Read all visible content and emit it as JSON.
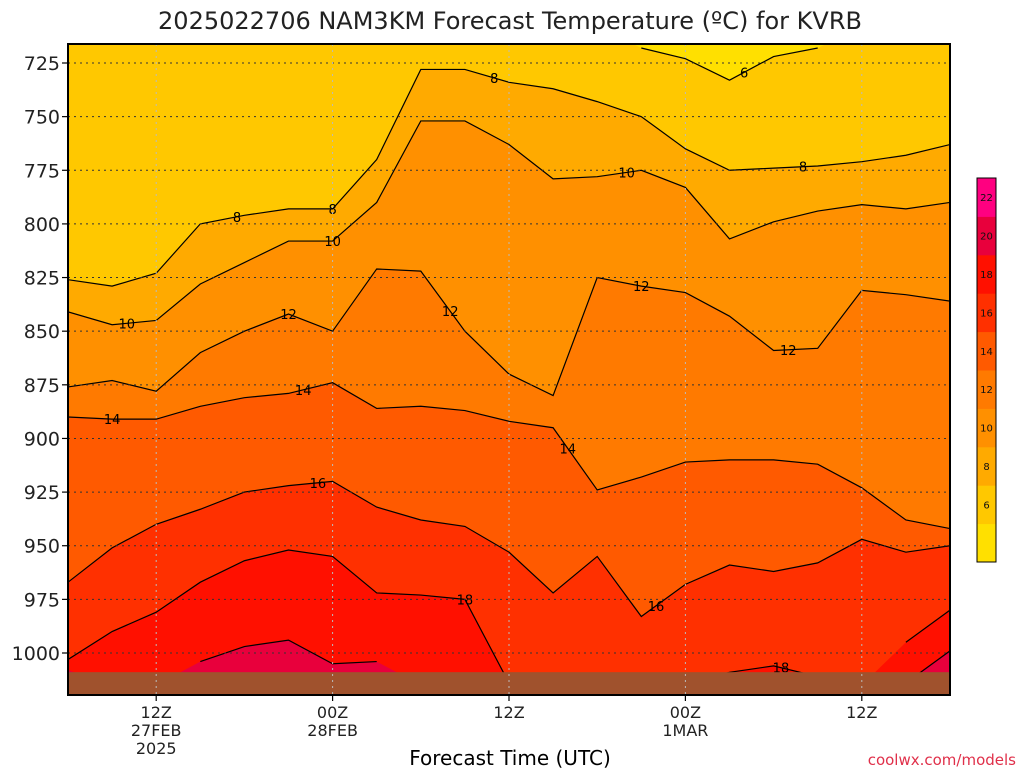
{
  "chart_data": {
    "type": "heatmap",
    "title": "2025022706 NAM3KM Forecast Temperature (ºC) for KVRB",
    "xlabel": "Forecast Time (UTC)",
    "ylabel": "",
    "credit": "coolwx.com/models",
    "y_scale": "pressure (hPa), decreasing upward",
    "ylim": [
      1015,
      718
    ],
    "xlim_hours_from_init": [
      0,
      60
    ],
    "y_ticks": [
      725,
      750,
      775,
      800,
      825,
      850,
      875,
      900,
      925,
      950,
      975,
      1000
    ],
    "x_ticks": [
      {
        "hour": 6,
        "labels": [
          "12Z",
          "27FEB",
          "2025"
        ]
      },
      {
        "hour": 18,
        "labels": [
          "00Z",
          "28FEB"
        ]
      },
      {
        "hour": 30,
        "labels": [
          "12Z"
        ]
      },
      {
        "hour": 42,
        "labels": [
          "00Z",
          "1MAR"
        ]
      },
      {
        "hour": 54,
        "labels": [
          "12Z"
        ]
      }
    ],
    "grid": true,
    "surface_color": "#a0522d",
    "colorbar": {
      "placement": "right",
      "levels": [
        4,
        6,
        8,
        10,
        12,
        14,
        16,
        18,
        20,
        22,
        24
      ],
      "labels": [
        "6",
        "8",
        "10",
        "12",
        "14",
        "16",
        "18",
        "20",
        "22"
      ],
      "colors": [
        "#ffe000",
        "#ffc800",
        "#ffaa00",
        "#ff9000",
        "#ff7a00",
        "#ff5a00",
        "#ff3000",
        "#ff1000",
        "#e8003c",
        "#ff0080"
      ]
    },
    "contours": [
      {
        "value": 6,
        "label": "6",
        "label_hours": [
          46
        ]
      },
      {
        "value": 8,
        "label": "8",
        "label_hours": [
          11.5,
          18,
          29,
          50
        ]
      },
      {
        "value": 10,
        "label": "10",
        "label_hours": [
          4,
          18,
          38
        ]
      },
      {
        "value": 12,
        "label": "12",
        "label_hours": [
          15,
          26,
          39,
          49
        ]
      },
      {
        "value": 14,
        "label": "14",
        "label_hours": [
          3,
          16,
          34
        ]
      },
      {
        "value": 16,
        "label": "16",
        "label_hours": [
          17,
          40
        ]
      },
      {
        "value": 18,
        "label": "18",
        "label_hours": [
          27,
          48.5
        ]
      }
    ],
    "x_hours": [
      0,
      3,
      6,
      9,
      12,
      15,
      18,
      21,
      24,
      27,
      30,
      33,
      36,
      39,
      42,
      45,
      48,
      51,
      54,
      57,
      60
    ],
    "temperature_isotherm_pressures_hPa": {
      "6": [
        null,
        null,
        null,
        null,
        null,
        null,
        null,
        null,
        null,
        null,
        null,
        null,
        null,
        718,
        723,
        733,
        722,
        718,
        null,
        null,
        null
      ],
      "8": [
        826,
        829,
        823,
        800,
        796,
        793,
        793,
        770,
        728,
        728,
        734,
        737,
        743,
        750,
        765,
        775,
        774,
        773,
        771,
        768,
        763
      ],
      "10": [
        841,
        847,
        845,
        828,
        818,
        808,
        808,
        790,
        752,
        752,
        763,
        779,
        778,
        775,
        783,
        807,
        799,
        794,
        791,
        793,
        790
      ],
      "12": [
        876,
        873,
        878,
        860,
        850,
        842,
        850,
        821,
        822,
        850,
        870,
        880,
        825,
        829,
        832,
        843,
        859,
        858,
        831,
        833,
        836
      ],
      "14": [
        890,
        891,
        891,
        885,
        881,
        879,
        874,
        886,
        885,
        887,
        892,
        895,
        924,
        918,
        911,
        910,
        910,
        912,
        923,
        938,
        942
      ],
      "16": [
        967,
        951,
        940,
        933,
        925,
        922,
        920,
        932,
        938,
        941,
        953,
        972,
        955,
        983,
        968,
        959,
        962,
        958,
        947,
        953,
        950
      ],
      "18": [
        1003,
        990,
        981,
        967,
        957,
        952,
        955,
        972,
        973,
        975,
        1014,
        1014,
        1014,
        1014,
        1014,
        1009,
        1006,
        1011,
        1015,
        995,
        980
      ],
      "20": [
        1008,
        1015,
        1015,
        1004,
        997,
        994,
        1005,
        1004,
        1015,
        1015,
        1015,
        1015,
        1015,
        1015,
        1015,
        1015,
        1015,
        1015,
        1015,
        1014,
        999
      ],
      "22": [
        1015,
        1015,
        1015,
        1015,
        1010,
        1010,
        1015,
        1015,
        1015,
        1015,
        1015,
        1015,
        1015,
        1015,
        1015,
        1015,
        1015,
        1015,
        1015,
        1015,
        1015
      ]
    }
  }
}
